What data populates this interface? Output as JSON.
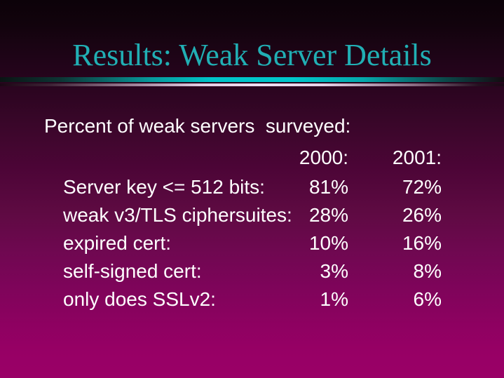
{
  "slide": {
    "title": "Results: Weak Server Details",
    "intro": "Percent of weak servers  surveyed:",
    "table": {
      "headers": {
        "col1": "2000:",
        "col2": "2001:"
      },
      "rows": [
        {
          "label": "Server key <= 512 bits:",
          "v2000": "81%",
          "v2001": "72%"
        },
        {
          "label": "weak v3/TLS ciphersuites:",
          "v2000": "28%",
          "v2001": "26%"
        },
        {
          "label": "expired cert:",
          "v2000": "10%",
          "v2001": "16%"
        },
        {
          "label": "self-signed cert:",
          "v2000": "3%",
          "v2001": "8%"
        },
        {
          "label": "only does SSLv2:",
          "v2000": "1%",
          "v2001": "6%"
        }
      ]
    },
    "colors": {
      "title_text": "#21afb4",
      "body_text": "#ffffff",
      "divider_teal": "#00c6cb",
      "divider_pink": "#f0def2",
      "background_top": "#0c0209",
      "background_bottom": "#9a0067"
    }
  }
}
